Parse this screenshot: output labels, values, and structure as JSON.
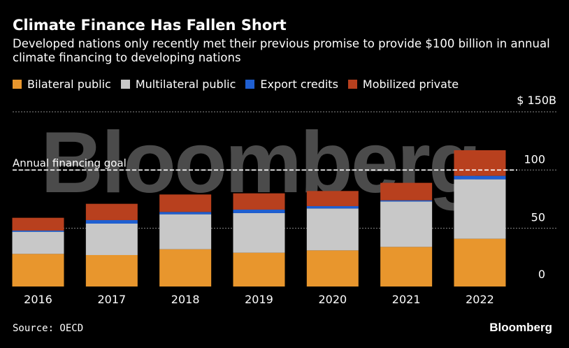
{
  "header": {
    "title": "Climate Finance Has Fallen Short",
    "subtitle": "Developed nations only recently met their previous promise to provide $100 billion in annual climate financing to developing nations"
  },
  "watermark": "Bloomberg",
  "footer": {
    "source": "Source: OECD",
    "brand": "Bloomberg"
  },
  "chart_data": {
    "type": "bar",
    "stacked": true,
    "title": "Climate Finance Has Fallen Short",
    "categories": [
      "2016",
      "2017",
      "2018",
      "2019",
      "2020",
      "2021",
      "2022"
    ],
    "series": [
      {
        "name": "Bilateral public",
        "color": "#e8962d",
        "values": [
          28,
          27,
          32,
          29,
          31,
          34,
          41
        ]
      },
      {
        "name": "Multilateral public",
        "color": "#c8c8c8",
        "values": [
          19,
          27,
          30,
          34,
          36,
          39,
          51
        ]
      },
      {
        "name": "Export credits",
        "color": "#1f5fd1",
        "values": [
          1,
          3,
          2,
          3,
          2,
          1,
          3
        ]
      },
      {
        "name": "Mobilized private",
        "color": "#b8401e",
        "values": [
          11,
          14,
          15,
          14,
          13,
          15,
          22
        ]
      }
    ],
    "ylim": [
      0,
      150
    ],
    "y_ticks": [
      {
        "value": 0,
        "label": "0"
      },
      {
        "value": 50,
        "label": "50"
      },
      {
        "value": 100,
        "label": "100"
      },
      {
        "value": 150,
        "label": "$ 150B"
      }
    ],
    "reference_line": {
      "value": 100,
      "label": "Annual financing goal"
    },
    "xlabel": "",
    "ylabel": ""
  }
}
